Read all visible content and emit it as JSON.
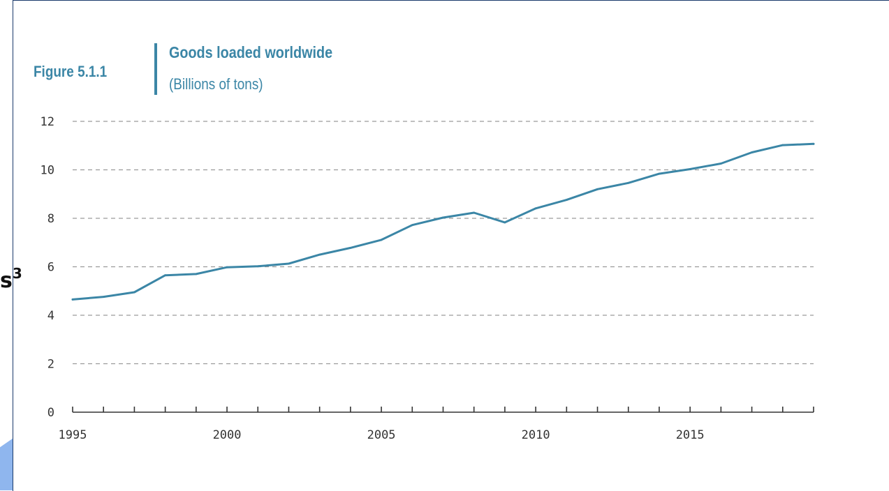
{
  "figure_label": "Figure 5.1.1",
  "title": "Goods loaded worldwide",
  "subtitle": "(Billions of tons)",
  "side_mark": {
    "text": "s",
    "superscript": "3"
  },
  "colors": {
    "line": "#3b86a6",
    "title": "#3b86a6",
    "grid": "#9a9a9a",
    "axis": "#333333"
  },
  "chart_data": {
    "type": "line",
    "title": "Goods loaded worldwide",
    "subtitle": "(Billions of tons)",
    "xlabel": "",
    "ylabel": "",
    "xlim": [
      1995,
      2019
    ],
    "ylim": [
      0,
      12
    ],
    "x_ticks": [
      1995,
      2000,
      2005,
      2010,
      2015
    ],
    "y_ticks": [
      0,
      2,
      4,
      6,
      8,
      10,
      12
    ],
    "grid": "horizontal-dashed",
    "series": [
      {
        "x": [
          1995,
          1996,
          1997,
          1998,
          1999,
          2000,
          2001,
          2002,
          2003,
          2004,
          2005,
          2006,
          2007,
          2008,
          2009,
          2010,
          2011,
          2012,
          2013,
          2014,
          2015,
          2016,
          2017,
          2018,
          2019
        ],
        "values": [
          4.65,
          4.76,
          4.95,
          5.65,
          5.7,
          5.98,
          6.02,
          6.13,
          6.5,
          6.78,
          7.11,
          7.72,
          8.03,
          8.23,
          7.83,
          8.41,
          8.76,
          9.2,
          9.46,
          9.84,
          10.03,
          10.26,
          10.72,
          11.02,
          11.07
        ]
      }
    ]
  }
}
